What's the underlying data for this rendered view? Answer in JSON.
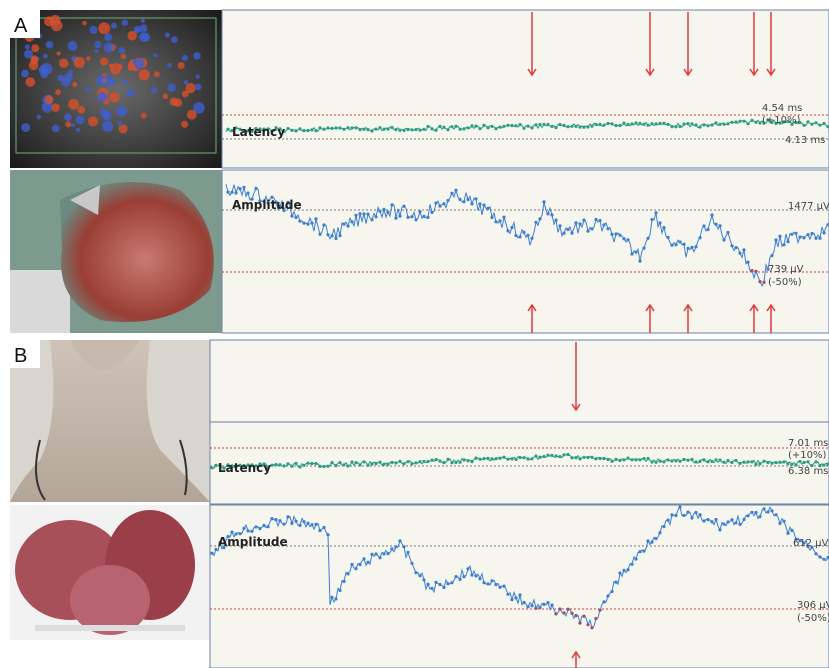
{
  "panels": [
    {
      "label": "A",
      "latency": {
        "label": "Latency",
        "upper": "4.54 ms",
        "upper_note": "(+10%)",
        "baseline": "4.13 ms"
      },
      "amplitude": {
        "label": "Amplitude",
        "baseline": "1477 µV",
        "lower": "739 µV",
        "lower_note": "(-50%)"
      }
    },
    {
      "label": "B",
      "latency": {
        "label": "Latency",
        "upper": "7.01 ms",
        "upper_note": "(+10%)",
        "baseline": "6.38 ms"
      },
      "amplitude": {
        "label": "Amplitude",
        "baseline": "612 µV",
        "lower": "306 µV",
        "lower_note": "(-50%)"
      }
    }
  ]
}
